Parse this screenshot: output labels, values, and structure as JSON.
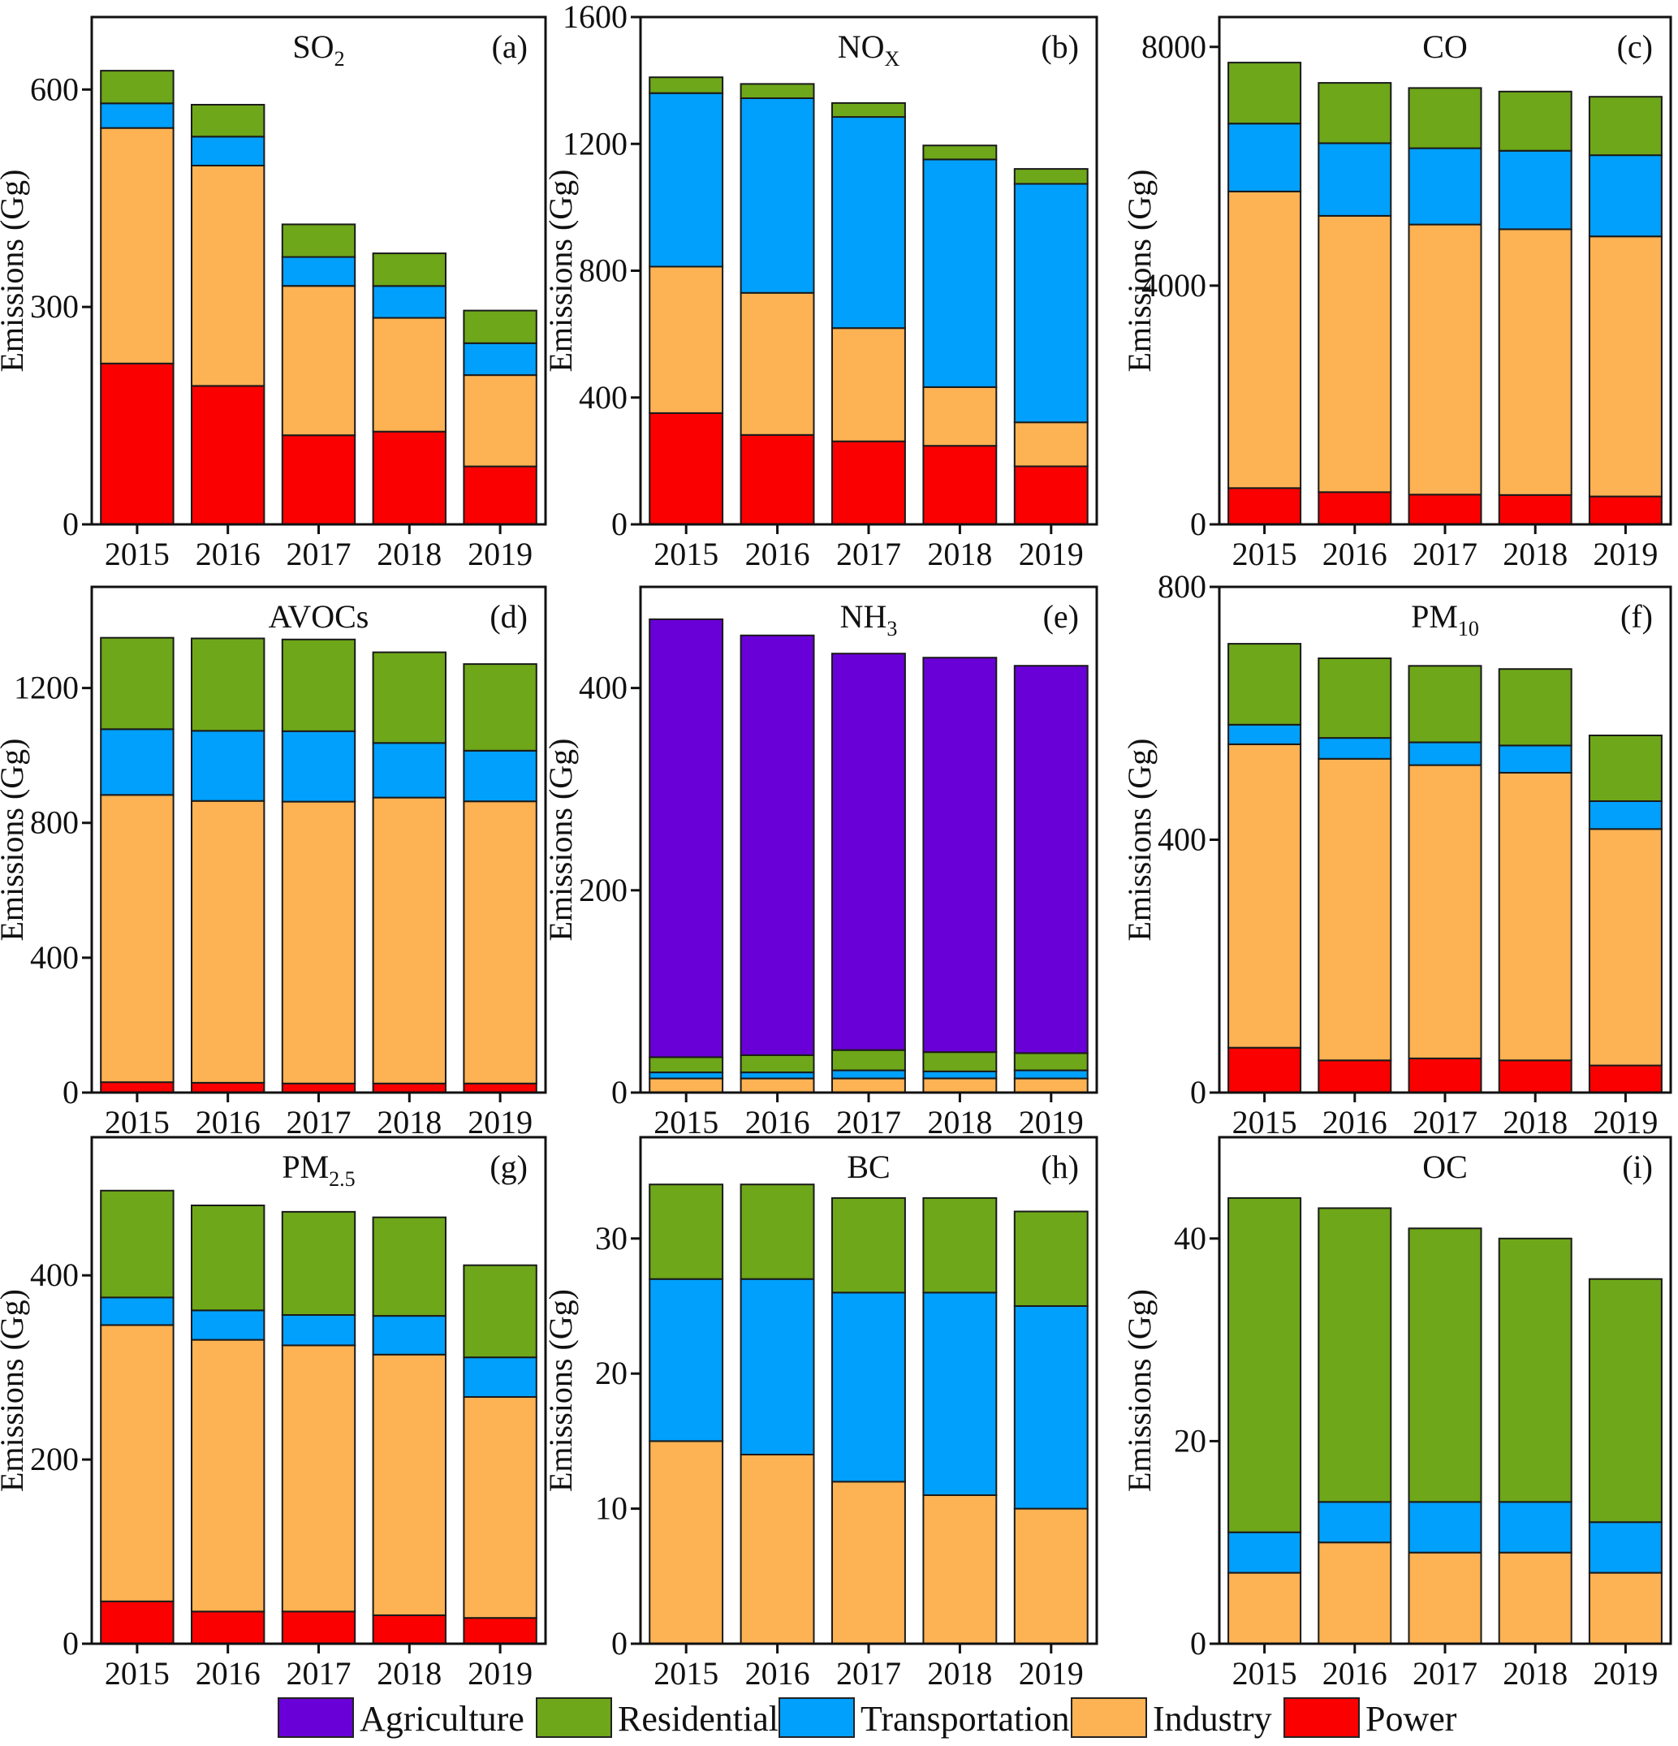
{
  "chart_data": {
    "type": "bar",
    "stacked": true,
    "layout": "3x3 grid",
    "categories": [
      "2015",
      "2016",
      "2017",
      "2018",
      "2019"
    ],
    "ylabel": "Emissions (Gg)",
    "legend": {
      "placement": "bottom",
      "entries": [
        {
          "name": "Agriculture",
          "color": "#6a00d8"
        },
        {
          "name": "Residential",
          "color": "#6ea719"
        },
        {
          "name": "Transportation",
          "color": "#00a0fc"
        },
        {
          "name": "Industry",
          "color": "#fdb253"
        },
        {
          "name": "Power",
          "color": "#fa0000"
        }
      ]
    },
    "stack_order": [
      "Power",
      "Industry",
      "Transportation",
      "Residential",
      "Agriculture"
    ],
    "panels": [
      {
        "letter": "(a)",
        "title": "SO",
        "subscript": "2",
        "ylim": [
          0,
          700
        ],
        "yticks": [
          0,
          300,
          600
        ],
        "series": [
          {
            "name": "Power",
            "values": [
              222,
              191,
              123,
              128,
              80
            ]
          },
          {
            "name": "Industry",
            "values": [
              325,
              304,
              206,
              157,
              126
            ]
          },
          {
            "name": "Transportation",
            "values": [
              34,
              40,
              40,
              44,
              44
            ]
          },
          {
            "name": "Residential",
            "values": [
              45,
              44,
              45,
              45,
              45
            ]
          }
        ]
      },
      {
        "letter": "(b)",
        "title": "NO",
        "subscript": "X",
        "ylim": [
          0,
          1600
        ],
        "yticks": [
          0,
          400,
          800,
          1200,
          1600
        ],
        "series": [
          {
            "name": "Power",
            "values": [
              351,
              282,
              262,
              248,
              183
            ]
          },
          {
            "name": "Industry",
            "values": [
              462,
              448,
              357,
              185,
              139
            ]
          },
          {
            "name": "Transportation",
            "values": [
              547,
              614,
              666,
              718,
              752
            ]
          },
          {
            "name": "Residential",
            "values": [
              50,
              45,
              44,
              44,
              47
            ]
          }
        ]
      },
      {
        "letter": "(c)",
        "title": "CO",
        "subscript": "",
        "ylim": [
          0,
          8500
        ],
        "yticks": [
          0,
          4000,
          8000
        ],
        "series": [
          {
            "name": "Power",
            "values": [
              608,
              541,
              499,
              493,
              468
            ]
          },
          {
            "name": "Industry",
            "values": [
              4970,
              4629,
              4525,
              4452,
              4356
            ]
          },
          {
            "name": "Transportation",
            "values": [
              1137,
              1217,
              1278,
              1314,
              1362
            ]
          },
          {
            "name": "Residential",
            "values": [
              1022,
              1010,
              1009,
              992,
              979
            ]
          }
        ]
      },
      {
        "letter": "(d)",
        "title": "AVOCs",
        "subscript": "",
        "ylim": [
          0,
          1500
        ],
        "yticks": [
          0,
          400,
          800,
          1200
        ],
        "series": [
          {
            "name": "Power",
            "values": [
              31,
              29,
              27,
              27,
              27
            ]
          },
          {
            "name": "Industry",
            "values": [
              852,
              836,
              836,
              848,
              837
            ]
          },
          {
            "name": "Transportation",
            "values": [
              195,
              208,
              209,
              162,
              150
            ]
          },
          {
            "name": "Residential",
            "values": [
              271,
              274,
              272,
              269,
              257
            ]
          }
        ]
      },
      {
        "letter": "(e)",
        "title": "NH",
        "subscript": "3",
        "ylim": [
          0,
          500
        ],
        "yticks": [
          0,
          200,
          400
        ],
        "series": [
          {
            "name": "Industry",
            "values": [
              14,
              14,
              14,
              14,
              14
            ]
          },
          {
            "name": "Transportation",
            "values": [
              6,
              6,
              8,
              7,
              8
            ]
          },
          {
            "name": "Residential",
            "values": [
              15,
              17,
              20,
              19,
              17
            ]
          },
          {
            "name": "Agriculture",
            "values": [
              433,
              415,
              392,
              390,
              383
            ]
          }
        ]
      },
      {
        "letter": "(f)",
        "title": "PM",
        "subscript": "10",
        "ylim": [
          0,
          800
        ],
        "yticks": [
          0,
          400,
          800
        ],
        "series": [
          {
            "name": "Power",
            "values": [
              71,
              51,
              54,
              51,
              43
            ]
          },
          {
            "name": "Industry",
            "values": [
              480,
              477,
              464,
              455,
              374
            ]
          },
          {
            "name": "Transportation",
            "values": [
              31,
              33,
              36,
              43,
              44
            ]
          },
          {
            "name": "Residential",
            "values": [
              128,
              126,
              121,
              121,
              104
            ]
          }
        ]
      },
      {
        "letter": "(g)",
        "title": "PM",
        "subscript": "2.5",
        "ylim": [
          0,
          550
        ],
        "yticks": [
          0,
          200,
          400
        ],
        "series": [
          {
            "name": "Power",
            "values": [
              46,
              35,
              35,
              31,
              28
            ]
          },
          {
            "name": "Industry",
            "values": [
              300,
              295,
              289,
              283,
              240
            ]
          },
          {
            "name": "Transportation",
            "values": [
              30,
              32,
              33,
              42,
              43
            ]
          },
          {
            "name": "Residential",
            "values": [
              116,
              114,
              112,
              107,
              100
            ]
          }
        ]
      },
      {
        "letter": "(h)",
        "title": "BC",
        "subscript": "",
        "ylim": [
          0,
          37.5
        ],
        "yticks": [
          0,
          10,
          20,
          30
        ],
        "series": [
          {
            "name": "Industry",
            "values": [
              15,
              14,
              12,
              11,
              10
            ]
          },
          {
            "name": "Transportation",
            "values": [
              12,
              13,
              14,
              15,
              15
            ]
          },
          {
            "name": "Residential",
            "values": [
              7,
              7,
              7,
              7,
              7
            ]
          }
        ]
      },
      {
        "letter": "(i)",
        "title": "OC",
        "subscript": "",
        "ylim": [
          0,
          50
        ],
        "yticks": [
          0,
          20,
          40
        ],
        "series": [
          {
            "name": "Industry",
            "values": [
              7,
              10,
              9,
              9,
              7
            ]
          },
          {
            "name": "Transportation",
            "values": [
              4,
              4,
              5,
              5,
              5
            ]
          },
          {
            "name": "Residential",
            "values": [
              33,
              29,
              27,
              26,
              24
            ]
          }
        ]
      }
    ]
  }
}
